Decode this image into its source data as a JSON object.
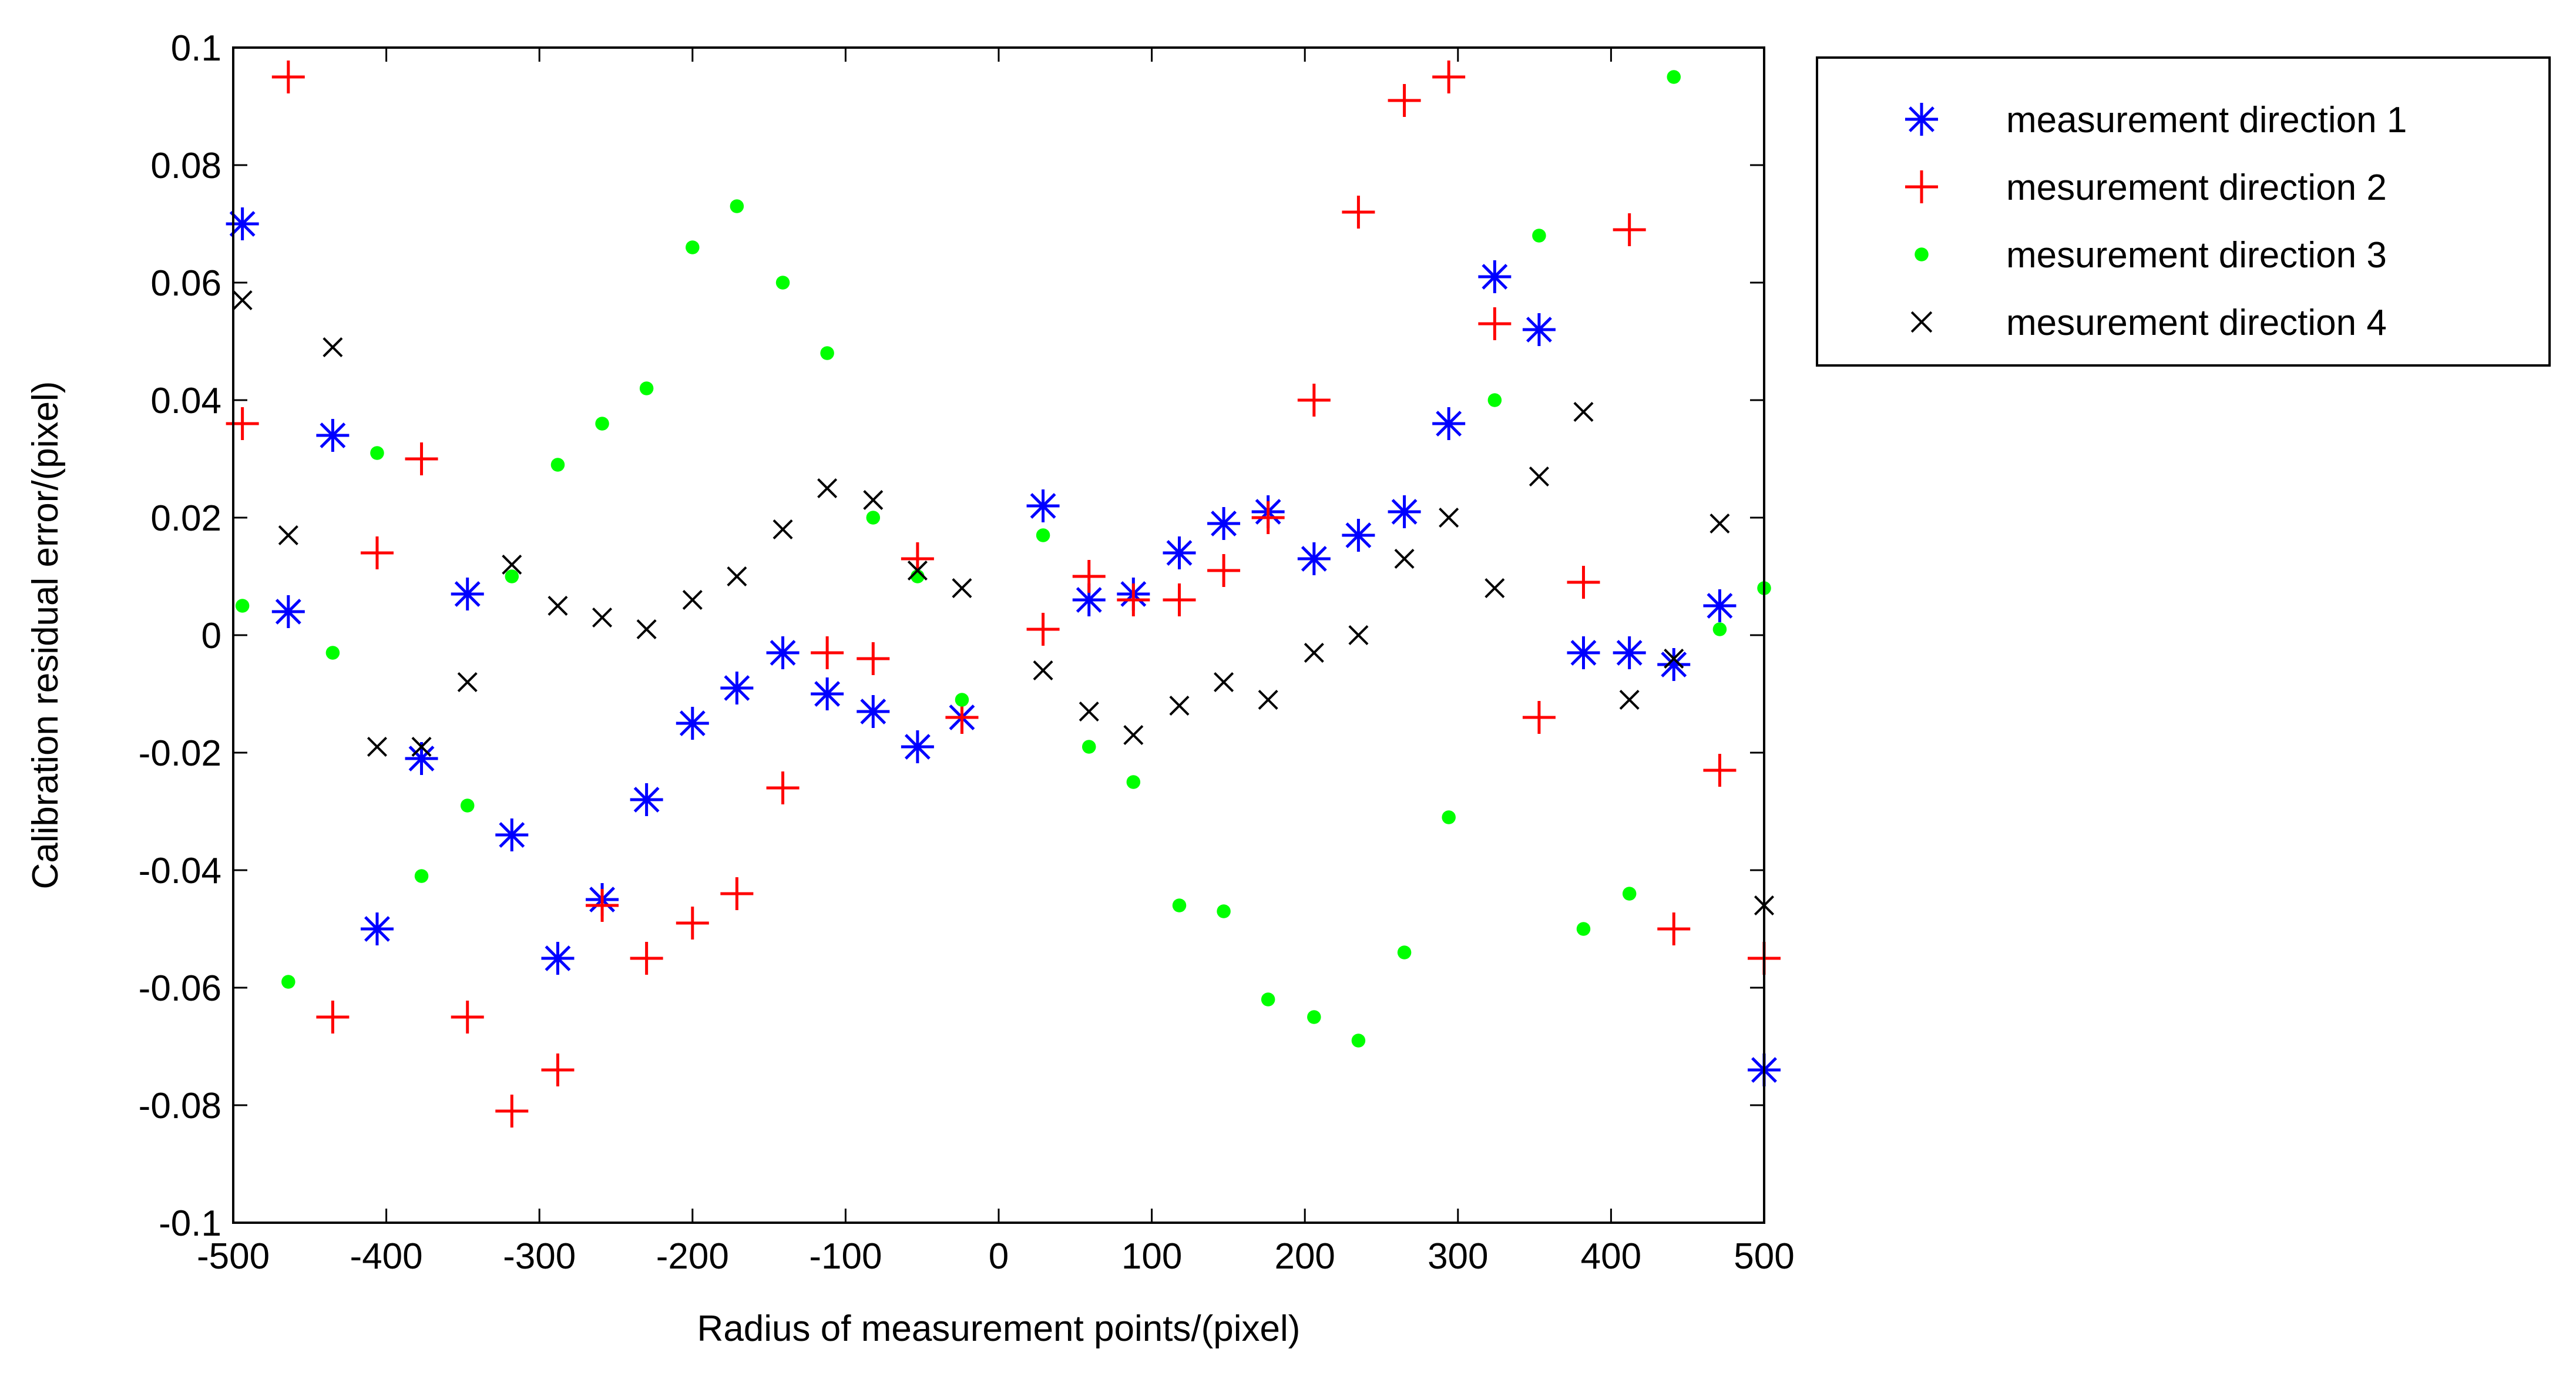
{
  "chart_data": {
    "type": "scatter",
    "xlabel": "Radius of measurement points/(pixel)",
    "ylabel": "Calibration residual error/(pixel)",
    "xlim": [
      -500,
      500
    ],
    "ylim": [
      -0.1,
      0.1
    ],
    "xticks": [
      -500,
      -400,
      -300,
      -200,
      -100,
      0,
      100,
      200,
      300,
      400,
      500
    ],
    "yticks": [
      -0.1,
      -0.08,
      -0.06,
      -0.04,
      -0.02,
      0,
      0.02,
      0.04,
      0.06,
      0.08,
      0.1
    ],
    "xtick_labels": [
      "-500",
      "-400",
      "-300",
      "-200",
      "-100",
      "0",
      "100",
      "200",
      "300",
      "400",
      "500"
    ],
    "ytick_labels": [
      "-0.1",
      "-0.08",
      "-0.06",
      "-0.04",
      "-0.02",
      "0",
      "0.02",
      "0.04",
      "0.06",
      "0.08",
      "0.1"
    ],
    "grid": false,
    "legend_position": "outside-top-right",
    "series": [
      {
        "name": "measurement direction 1",
        "marker": "asterisk",
        "color": "#0000ff",
        "points": [
          [
            -494,
            0.07
          ],
          [
            -464,
            0.004
          ],
          [
            -435,
            0.034
          ],
          [
            -406,
            -0.05
          ],
          [
            -377,
            -0.021
          ],
          [
            -347,
            0.007
          ],
          [
            -318,
            -0.034
          ],
          [
            -288,
            -0.055
          ],
          [
            -259,
            -0.045
          ],
          [
            -230,
            -0.028
          ],
          [
            -200,
            -0.015
          ],
          [
            -171,
            -0.009
          ],
          [
            -141,
            -0.003
          ],
          [
            -112,
            -0.01
          ],
          [
            -82,
            -0.013
          ],
          [
            -53,
            -0.019
          ],
          [
            -24,
            -0.014
          ],
          [
            29,
            0.022
          ],
          [
            59,
            0.006
          ],
          [
            88,
            0.007
          ],
          [
            118,
            0.014
          ],
          [
            147,
            0.019
          ],
          [
            176,
            0.021
          ],
          [
            206,
            0.013
          ],
          [
            235,
            0.017
          ],
          [
            265,
            0.021
          ],
          [
            294,
            0.036
          ],
          [
            324,
            0.061
          ],
          [
            353,
            0.052
          ],
          [
            382,
            -0.003
          ],
          [
            412,
            -0.003
          ],
          [
            441,
            -0.005
          ],
          [
            471,
            0.005
          ],
          [
            500,
            -0.074
          ]
        ]
      },
      {
        "name": "mesurement direction 2",
        "marker": "plus",
        "color": "#ff0000",
        "points": [
          [
            -494,
            0.036
          ],
          [
            -464,
            0.095
          ],
          [
            -435,
            -0.065
          ],
          [
            -406,
            0.014
          ],
          [
            -377,
            0.03
          ],
          [
            -347,
            -0.065
          ],
          [
            -318,
            -0.081
          ],
          [
            -288,
            -0.074
          ],
          [
            -259,
            -0.046
          ],
          [
            -230,
            -0.055
          ],
          [
            -200,
            -0.049
          ],
          [
            -171,
            -0.044
          ],
          [
            -141,
            -0.026
          ],
          [
            -112,
            -0.003
          ],
          [
            -82,
            -0.004
          ],
          [
            -53,
            0.013
          ],
          [
            -24,
            -0.014
          ],
          [
            29,
            0.001
          ],
          [
            59,
            0.01
          ],
          [
            88,
            0.006
          ],
          [
            118,
            0.006
          ],
          [
            147,
            0.011
          ],
          [
            176,
            0.02
          ],
          [
            206,
            0.04
          ],
          [
            235,
            0.072
          ],
          [
            265,
            0.091
          ],
          [
            294,
            0.095
          ],
          [
            324,
            0.053
          ],
          [
            353,
            -0.014
          ],
          [
            382,
            0.009
          ],
          [
            412,
            0.069
          ],
          [
            441,
            -0.05
          ],
          [
            471,
            -0.023
          ],
          [
            500,
            -0.055
          ]
        ]
      },
      {
        "name": "mesurement direction 3",
        "marker": "dot",
        "color": "#00ff00",
        "points": [
          [
            -494,
            0.005
          ],
          [
            -464,
            -0.059
          ],
          [
            -435,
            -0.003
          ],
          [
            -406,
            0.031
          ],
          [
            -377,
            -0.041
          ],
          [
            -347,
            -0.029
          ],
          [
            -318,
            0.01
          ],
          [
            -288,
            0.029
          ],
          [
            -259,
            0.036
          ],
          [
            -230,
            0.042
          ],
          [
            -200,
            0.066
          ],
          [
            -171,
            0.073
          ],
          [
            -141,
            0.06
          ],
          [
            -112,
            0.048
          ],
          [
            -82,
            0.02
          ],
          [
            -53,
            0.01
          ],
          [
            -24,
            -0.011
          ],
          [
            29,
            0.017
          ],
          [
            59,
            -0.019
          ],
          [
            88,
            -0.025
          ],
          [
            118,
            -0.046
          ],
          [
            147,
            -0.047
          ],
          [
            176,
            -0.062
          ],
          [
            206,
            -0.065
          ],
          [
            235,
            -0.069
          ],
          [
            265,
            -0.054
          ],
          [
            294,
            -0.031
          ],
          [
            324,
            0.04
          ],
          [
            353,
            0.068
          ],
          [
            382,
            -0.05
          ],
          [
            412,
            -0.044
          ],
          [
            441,
            0.095
          ],
          [
            471,
            0.001
          ],
          [
            500,
            0.008
          ]
        ]
      },
      {
        "name": "mesurement direction 4",
        "marker": "x",
        "color": "#000000",
        "points": [
          [
            -494,
            0.057
          ],
          [
            -464,
            0.017
          ],
          [
            -435,
            0.049
          ],
          [
            -406,
            -0.019
          ],
          [
            -377,
            -0.019
          ],
          [
            -347,
            -0.008
          ],
          [
            -318,
            0.012
          ],
          [
            -288,
            0.005
          ],
          [
            -259,
            0.003
          ],
          [
            -230,
            0.001
          ],
          [
            -200,
            0.006
          ],
          [
            -171,
            0.01
          ],
          [
            -141,
            0.018
          ],
          [
            -112,
            0.025
          ],
          [
            -82,
            0.023
          ],
          [
            -53,
            0.011
          ],
          [
            -24,
            0.008
          ],
          [
            29,
            -0.006
          ],
          [
            59,
            -0.013
          ],
          [
            88,
            -0.017
          ],
          [
            118,
            -0.012
          ],
          [
            147,
            -0.008
          ],
          [
            176,
            -0.011
          ],
          [
            206,
            -0.003
          ],
          [
            235,
            0.0
          ],
          [
            265,
            0.013
          ],
          [
            294,
            0.02
          ],
          [
            324,
            0.008
          ],
          [
            353,
            0.027
          ],
          [
            382,
            0.038
          ],
          [
            412,
            -0.011
          ],
          [
            441,
            -0.004
          ],
          [
            471,
            0.019
          ],
          [
            500,
            -0.046
          ]
        ]
      }
    ]
  }
}
